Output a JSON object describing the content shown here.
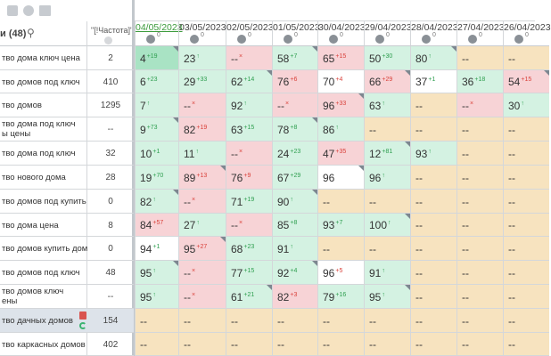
{
  "toolbar": {
    "icons": [
      "list-icon",
      "clock-icon",
      "folder-icon"
    ]
  },
  "header": {
    "keywords_title": "и (48)",
    "frequency_title": "\"[!Частота]\"",
    "dates": [
      "04/05/2023",
      "03/05/2023",
      "02/05/2023",
      "01/05/2023",
      "30/04/2023",
      "29/04/2023",
      "28/04/2023",
      "27/04/2023",
      "26/04/2023"
    ],
    "date_counts": [
      "0",
      "0",
      "0",
      "0",
      "0",
      "0",
      "0",
      "0",
      "0"
    ]
  },
  "colors": {
    "green": "#d4f2e2",
    "dark_green": "#a9e3c4",
    "pink": "#f7d3d6",
    "white": "#ffffff",
    "beige": "#f7e3bf",
    "up": "#2e9e4f",
    "down": "#d9423b"
  },
  "rows": [
    {
      "keyword": "тво дома ключ цена",
      "freq": "2",
      "cells": [
        {
          "v": "4",
          "d": "+19",
          "c": "dark_green",
          "t": "up"
        },
        {
          "v": "23",
          "d": "↑",
          "c": "green",
          "t": "up"
        },
        {
          "v": "--",
          "d": "×",
          "c": "pink",
          "t": "down"
        },
        {
          "v": "58",
          "d": "+7",
          "c": "green",
          "t": "up"
        },
        {
          "v": "65",
          "d": "+15",
          "c": "pink",
          "t": "down"
        },
        {
          "v": "50",
          "d": "+30",
          "c": "green",
          "t": "up"
        },
        {
          "v": "80",
          "d": "↑",
          "c": "green",
          "t": "up"
        },
        {
          "v": "--",
          "d": "",
          "c": "beige",
          "t": ""
        },
        {
          "v": "--",
          "d": "",
          "c": "beige",
          "t": ""
        }
      ]
    },
    {
      "keyword": "тво домов под ключ",
      "freq": "410",
      "cells": [
        {
          "v": "6",
          "d": "+23",
          "c": "green",
          "t": "up"
        },
        {
          "v": "29",
          "d": "+33",
          "c": "green",
          "t": "up"
        },
        {
          "v": "62",
          "d": "+14",
          "c": "green",
          "t": "up"
        },
        {
          "v": "76",
          "d": "+6",
          "c": "pink",
          "t": "down"
        },
        {
          "v": "70",
          "d": "+4",
          "c": "white",
          "t": "down"
        },
        {
          "v": "66",
          "d": "+29",
          "c": "pink",
          "t": "down"
        },
        {
          "v": "37",
          "d": "+1",
          "c": "white",
          "t": "up"
        },
        {
          "v": "36",
          "d": "+18",
          "c": "green",
          "t": "up"
        },
        {
          "v": "54",
          "d": "+15",
          "c": "pink",
          "t": "down"
        }
      ]
    },
    {
      "keyword": "тво домов",
      "freq": "1295",
      "cells": [
        {
          "v": "7",
          "d": "↑",
          "c": "green",
          "t": "up"
        },
        {
          "v": "--",
          "d": "×",
          "c": "pink",
          "t": "down"
        },
        {
          "v": "92",
          "d": "↑",
          "c": "green",
          "t": "up"
        },
        {
          "v": "--",
          "d": "×",
          "c": "pink",
          "t": "down"
        },
        {
          "v": "96",
          "d": "+33",
          "c": "pink",
          "t": "down"
        },
        {
          "v": "63",
          "d": "↑",
          "c": "green",
          "t": "up"
        },
        {
          "v": "--",
          "d": "",
          "c": "beige",
          "t": ""
        },
        {
          "v": "--",
          "d": "×",
          "c": "pink",
          "t": "down"
        },
        {
          "v": "30",
          "d": "↑",
          "c": "green",
          "t": "up"
        }
      ]
    },
    {
      "keyword": "тво дома под ключ|ы цены",
      "freq": "--",
      "cells": [
        {
          "v": "9",
          "d": "+73",
          "c": "green",
          "t": "up"
        },
        {
          "v": "82",
          "d": "+19",
          "c": "pink",
          "t": "down"
        },
        {
          "v": "63",
          "d": "+15",
          "c": "green",
          "t": "up"
        },
        {
          "v": "78",
          "d": "+8",
          "c": "green",
          "t": "up"
        },
        {
          "v": "86",
          "d": "↑",
          "c": "green",
          "t": "up"
        },
        {
          "v": "--",
          "d": "",
          "c": "beige",
          "t": ""
        },
        {
          "v": "--",
          "d": "",
          "c": "beige",
          "t": ""
        },
        {
          "v": "--",
          "d": "",
          "c": "beige",
          "t": ""
        },
        {
          "v": "--",
          "d": "",
          "c": "beige",
          "t": ""
        }
      ]
    },
    {
      "keyword": "тво дома под ключ",
      "freq": "32",
      "cells": [
        {
          "v": "10",
          "d": "+1",
          "c": "green",
          "t": "up"
        },
        {
          "v": "11",
          "d": "↑",
          "c": "green",
          "t": "up"
        },
        {
          "v": "--",
          "d": "×",
          "c": "pink",
          "t": "down"
        },
        {
          "v": "24",
          "d": "+23",
          "c": "green",
          "t": "up"
        },
        {
          "v": "47",
          "d": "+35",
          "c": "pink",
          "t": "down"
        },
        {
          "v": "12",
          "d": "+81",
          "c": "green",
          "t": "up"
        },
        {
          "v": "93",
          "d": "↑",
          "c": "green",
          "t": "up"
        },
        {
          "v": "--",
          "d": "",
          "c": "beige",
          "t": ""
        },
        {
          "v": "--",
          "d": "",
          "c": "beige",
          "t": ""
        }
      ]
    },
    {
      "keyword": "тво нового дома",
      "freq": "28",
      "cells": [
        {
          "v": "19",
          "d": "+70",
          "c": "green",
          "t": "up"
        },
        {
          "v": "89",
          "d": "+13",
          "c": "pink",
          "t": "down"
        },
        {
          "v": "76",
          "d": "+9",
          "c": "pink",
          "t": "down"
        },
        {
          "v": "67",
          "d": "+29",
          "c": "green",
          "t": "up"
        },
        {
          "v": "96",
          "d": "",
          "c": "white",
          "t": ""
        },
        {
          "v": "96",
          "d": "↑",
          "c": "green",
          "t": "up"
        },
        {
          "v": "--",
          "d": "",
          "c": "beige",
          "t": ""
        },
        {
          "v": "--",
          "d": "",
          "c": "beige",
          "t": ""
        },
        {
          "v": "--",
          "d": "",
          "c": "beige",
          "t": ""
        }
      ]
    },
    {
      "keyword": "тво домов под купить",
      "freq": "0",
      "cells": [
        {
          "v": "82",
          "d": "↑",
          "c": "green",
          "t": "up"
        },
        {
          "v": "--",
          "d": "×",
          "c": "pink",
          "t": "down"
        },
        {
          "v": "71",
          "d": "+19",
          "c": "green",
          "t": "up"
        },
        {
          "v": "90",
          "d": "↑",
          "c": "green",
          "t": "up"
        },
        {
          "v": "--",
          "d": "",
          "c": "beige",
          "t": ""
        },
        {
          "v": "--",
          "d": "",
          "c": "beige",
          "t": ""
        },
        {
          "v": "--",
          "d": "",
          "c": "beige",
          "t": ""
        },
        {
          "v": "--",
          "d": "",
          "c": "beige",
          "t": ""
        },
        {
          "v": "--",
          "d": "",
          "c": "beige",
          "t": ""
        }
      ]
    },
    {
      "keyword": "тво дома цена",
      "freq": "8",
      "cells": [
        {
          "v": "84",
          "d": "+57",
          "c": "pink",
          "t": "down"
        },
        {
          "v": "27",
          "d": "↑",
          "c": "green",
          "t": "up"
        },
        {
          "v": "--",
          "d": "×",
          "c": "pink",
          "t": "down"
        },
        {
          "v": "85",
          "d": "+8",
          "c": "green",
          "t": "up"
        },
        {
          "v": "93",
          "d": "+7",
          "c": "green",
          "t": "up"
        },
        {
          "v": "100",
          "d": "↑",
          "c": "green",
          "t": "up"
        },
        {
          "v": "--",
          "d": "",
          "c": "beige",
          "t": ""
        },
        {
          "v": "--",
          "d": "",
          "c": "beige",
          "t": ""
        },
        {
          "v": "--",
          "d": "",
          "c": "beige",
          "t": ""
        }
      ]
    },
    {
      "keyword": "тво домов купить дом",
      "freq": "0",
      "cells": [
        {
          "v": "94",
          "d": "+1",
          "c": "white",
          "t": "up"
        },
        {
          "v": "95",
          "d": "+27",
          "c": "pink",
          "t": "down"
        },
        {
          "v": "68",
          "d": "+23",
          "c": "green",
          "t": "up"
        },
        {
          "v": "91",
          "d": "↑",
          "c": "green",
          "t": "up"
        },
        {
          "v": "--",
          "d": "",
          "c": "beige",
          "t": ""
        },
        {
          "v": "--",
          "d": "",
          "c": "beige",
          "t": ""
        },
        {
          "v": "--",
          "d": "",
          "c": "beige",
          "t": ""
        },
        {
          "v": "--",
          "d": "",
          "c": "beige",
          "t": ""
        },
        {
          "v": "--",
          "d": "",
          "c": "beige",
          "t": ""
        }
      ]
    },
    {
      "keyword": "тво домов под ключ",
      "freq": "48",
      "cells": [
        {
          "v": "95",
          "d": "↑",
          "c": "green",
          "t": "up"
        },
        {
          "v": "--",
          "d": "×",
          "c": "pink",
          "t": "down"
        },
        {
          "v": "77",
          "d": "+15",
          "c": "green",
          "t": "up"
        },
        {
          "v": "92",
          "d": "+4",
          "c": "green",
          "t": "up"
        },
        {
          "v": "96",
          "d": "+5",
          "c": "white",
          "t": "down"
        },
        {
          "v": "91",
          "d": "↑",
          "c": "green",
          "t": "up"
        },
        {
          "v": "--",
          "d": "",
          "c": "beige",
          "t": ""
        },
        {
          "v": "--",
          "d": "",
          "c": "beige",
          "t": ""
        },
        {
          "v": "--",
          "d": "",
          "c": "beige",
          "t": ""
        }
      ]
    },
    {
      "keyword": "тво домов ключ|ены",
      "freq": "--",
      "cells": [
        {
          "v": "95",
          "d": "↑",
          "c": "green",
          "t": "up"
        },
        {
          "v": "--",
          "d": "×",
          "c": "pink",
          "t": "down"
        },
        {
          "v": "61",
          "d": "+21",
          "c": "green",
          "t": "up"
        },
        {
          "v": "82",
          "d": "+3",
          "c": "pink",
          "t": "down"
        },
        {
          "v": "79",
          "d": "+16",
          "c": "green",
          "t": "up"
        },
        {
          "v": "95",
          "d": "↑",
          "c": "green",
          "t": "up"
        },
        {
          "v": "--",
          "d": "",
          "c": "beige",
          "t": ""
        },
        {
          "v": "--",
          "d": "",
          "c": "beige",
          "t": ""
        },
        {
          "v": "--",
          "d": "",
          "c": "beige",
          "t": ""
        }
      ]
    },
    {
      "keyword": "тво дачных домов",
      "freq": "154",
      "selected": true,
      "cells": [
        {
          "v": "--",
          "d": "",
          "c": "beige",
          "t": ""
        },
        {
          "v": "--",
          "d": "",
          "c": "beige",
          "t": ""
        },
        {
          "v": "--",
          "d": "",
          "c": "beige",
          "t": ""
        },
        {
          "v": "--",
          "d": "",
          "c": "beige",
          "t": ""
        },
        {
          "v": "--",
          "d": "",
          "c": "beige",
          "t": ""
        },
        {
          "v": "--",
          "d": "",
          "c": "beige",
          "t": ""
        },
        {
          "v": "--",
          "d": "",
          "c": "beige",
          "t": ""
        },
        {
          "v": "--",
          "d": "",
          "c": "beige",
          "t": ""
        },
        {
          "v": "--",
          "d": "",
          "c": "beige",
          "t": ""
        }
      ]
    },
    {
      "keyword": "тво каркасных домов",
      "freq": "402",
      "cells": [
        {
          "v": "--",
          "d": "",
          "c": "beige",
          "t": ""
        },
        {
          "v": "--",
          "d": "",
          "c": "beige",
          "t": ""
        },
        {
          "v": "--",
          "d": "",
          "c": "beige",
          "t": ""
        },
        {
          "v": "--",
          "d": "",
          "c": "beige",
          "t": ""
        },
        {
          "v": "--",
          "d": "",
          "c": "beige",
          "t": ""
        },
        {
          "v": "--",
          "d": "",
          "c": "beige",
          "t": ""
        },
        {
          "v": "--",
          "d": "",
          "c": "beige",
          "t": ""
        },
        {
          "v": "--",
          "d": "",
          "c": "beige",
          "t": ""
        },
        {
          "v": "--",
          "d": "",
          "c": "beige",
          "t": ""
        }
      ]
    }
  ]
}
